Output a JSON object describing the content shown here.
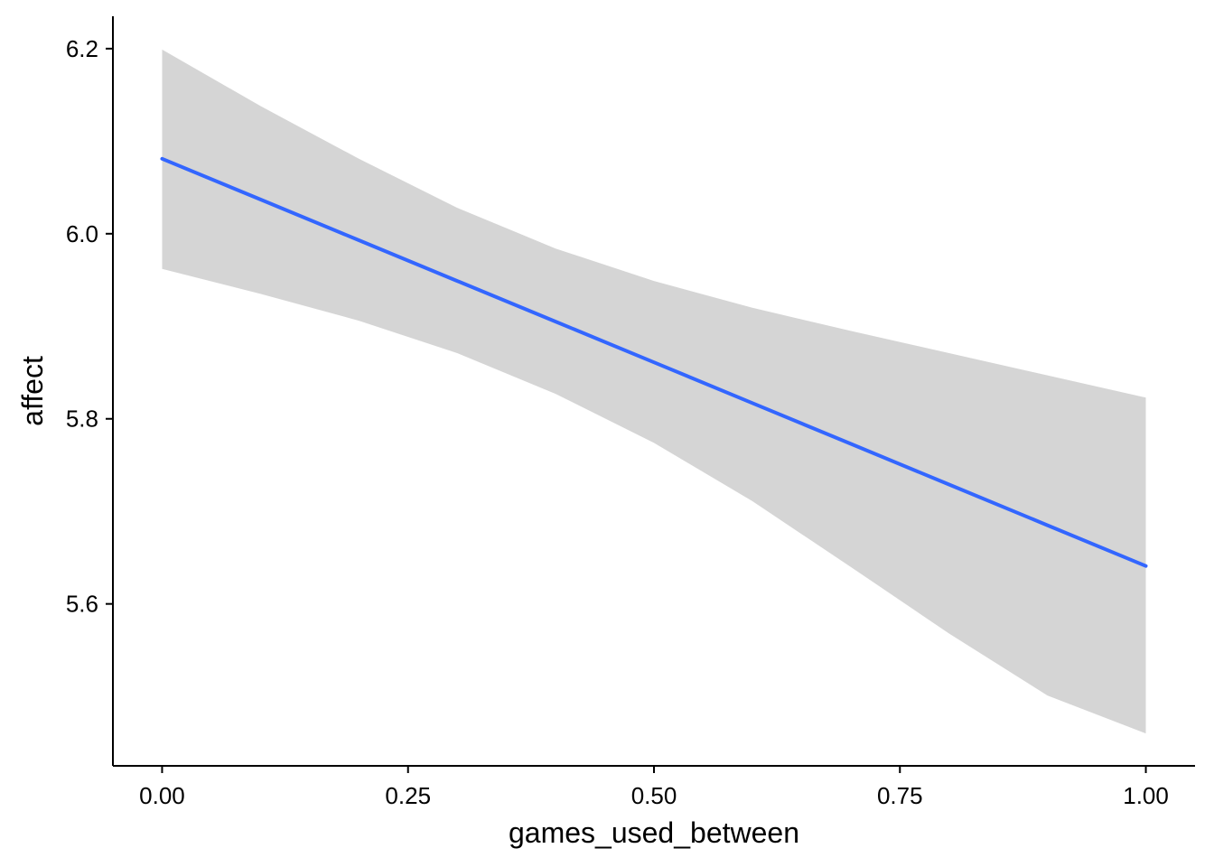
{
  "chart_data": {
    "type": "line",
    "title": "",
    "xlabel": "games_used_between",
    "ylabel": "affect",
    "xlim": [
      -0.05,
      1.05
    ],
    "ylim": [
      5.425,
      6.235
    ],
    "x_ticks": [
      0.0,
      0.25,
      0.5,
      0.75,
      1.0
    ],
    "x_tick_labels": [
      "0.00",
      "0.25",
      "0.50",
      "0.75",
      "1.00"
    ],
    "y_ticks": [
      5.6,
      5.8,
      6.0,
      6.2
    ],
    "y_tick_labels": [
      "5.6",
      "5.8",
      "6.0",
      "6.2"
    ],
    "grid": false,
    "legend": "none",
    "series": [
      {
        "x": [
          0.0,
          0.1,
          0.2,
          0.3,
          0.4,
          0.5,
          0.6,
          0.7,
          0.8,
          0.9,
          1.0
        ],
        "values": [
          6.081,
          6.037,
          5.993,
          5.949,
          5.905,
          5.861,
          5.817,
          5.773,
          5.729,
          5.685,
          5.641
        ],
        "ci_lower": [
          5.962,
          5.935,
          5.906,
          5.871,
          5.827,
          5.774,
          5.711,
          5.64,
          5.568,
          5.501,
          5.46
        ],
        "ci_upper": [
          6.199,
          6.138,
          6.081,
          6.028,
          5.984,
          5.949,
          5.92,
          5.895,
          5.871,
          5.847,
          5.823
        ],
        "color": "#3366FF",
        "band_color": "#D5D5D5"
      }
    ]
  }
}
